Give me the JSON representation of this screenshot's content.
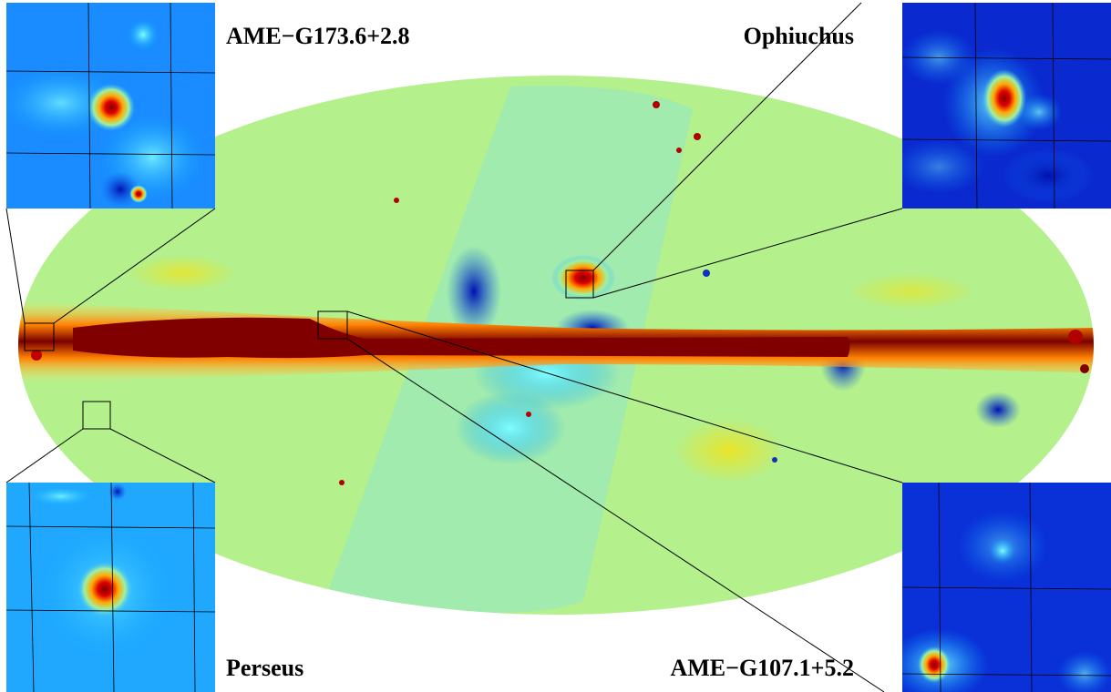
{
  "labels": {
    "top_left": "AME−G173.6+2.8",
    "top_right": "Ophiuchus",
    "bottom_left": "Perseus",
    "bottom_right": "AME−G107.1+5.2"
  },
  "colors": {
    "background": "#ffffff",
    "map_base": "#a8f08a",
    "plane": "#8b0000",
    "colormap": "jet"
  },
  "icons": {
    "map": "mollweide-all-sky-map",
    "inset": "zoom-inset-panel"
  }
}
